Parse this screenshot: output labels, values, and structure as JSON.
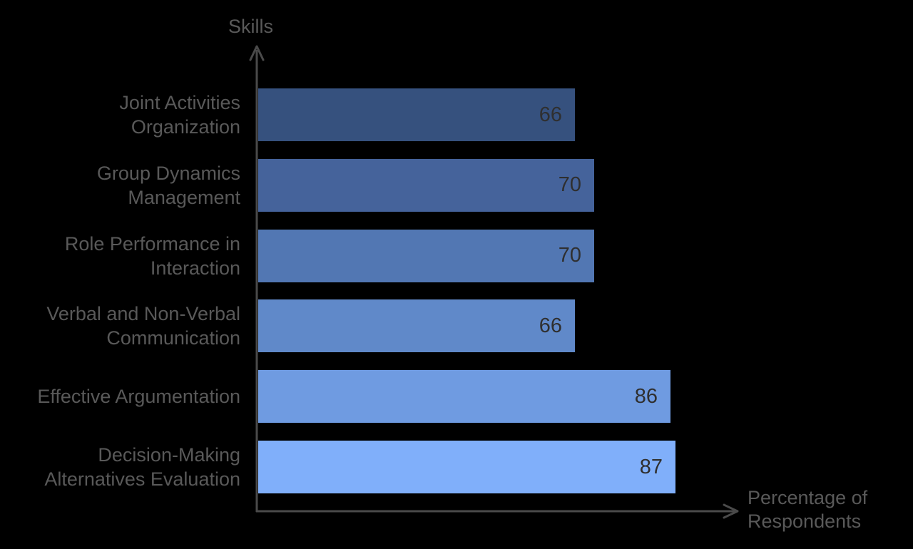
{
  "chart_data": {
    "type": "bar",
    "orientation": "horizontal",
    "title": "",
    "ylabel": "Skills",
    "xlabel": "Percentage of Respondents",
    "xlabel_lines": "Percentage of\nRespondents",
    "xlim": [
      0,
      100
    ],
    "grid": false,
    "legend": false,
    "value_labels_shown": true,
    "categories": [
      "Joint Activities Organization",
      "Group Dynamics Management",
      "Role Performance in Interaction",
      "Verbal and Non-Verbal Communication",
      "Effective Argumentation",
      "Decision-Making Alternatives Evaluation"
    ],
    "values": [
      66,
      70,
      70,
      66,
      86,
      87
    ],
    "bars": [
      {
        "category_lines": "Joint Activities\nOrganization",
        "value": 66,
        "color": "#36517E"
      },
      {
        "category_lines": "Group Dynamics\nManagement",
        "value": 70,
        "color": "#45639B"
      },
      {
        "category_lines": "Role Performance in\nInteraction",
        "value": 70,
        "color": "#5277B3"
      },
      {
        "category_lines": "Verbal and Non-Verbal\nCommunication",
        "value": 66,
        "color": "#6089C9"
      },
      {
        "category_lines": "Effective Argumentation",
        "value": 86,
        "color": "#6F9BE1"
      },
      {
        "category_lines": "Decision-Making\nAlternatives Evaluation",
        "value": 87,
        "color": "#80AFFA"
      }
    ],
    "colors": {
      "background": "#000000",
      "axis": "#4A4A4A",
      "axis_label": "#595959",
      "value_label": "#2F2F2F"
    }
  }
}
